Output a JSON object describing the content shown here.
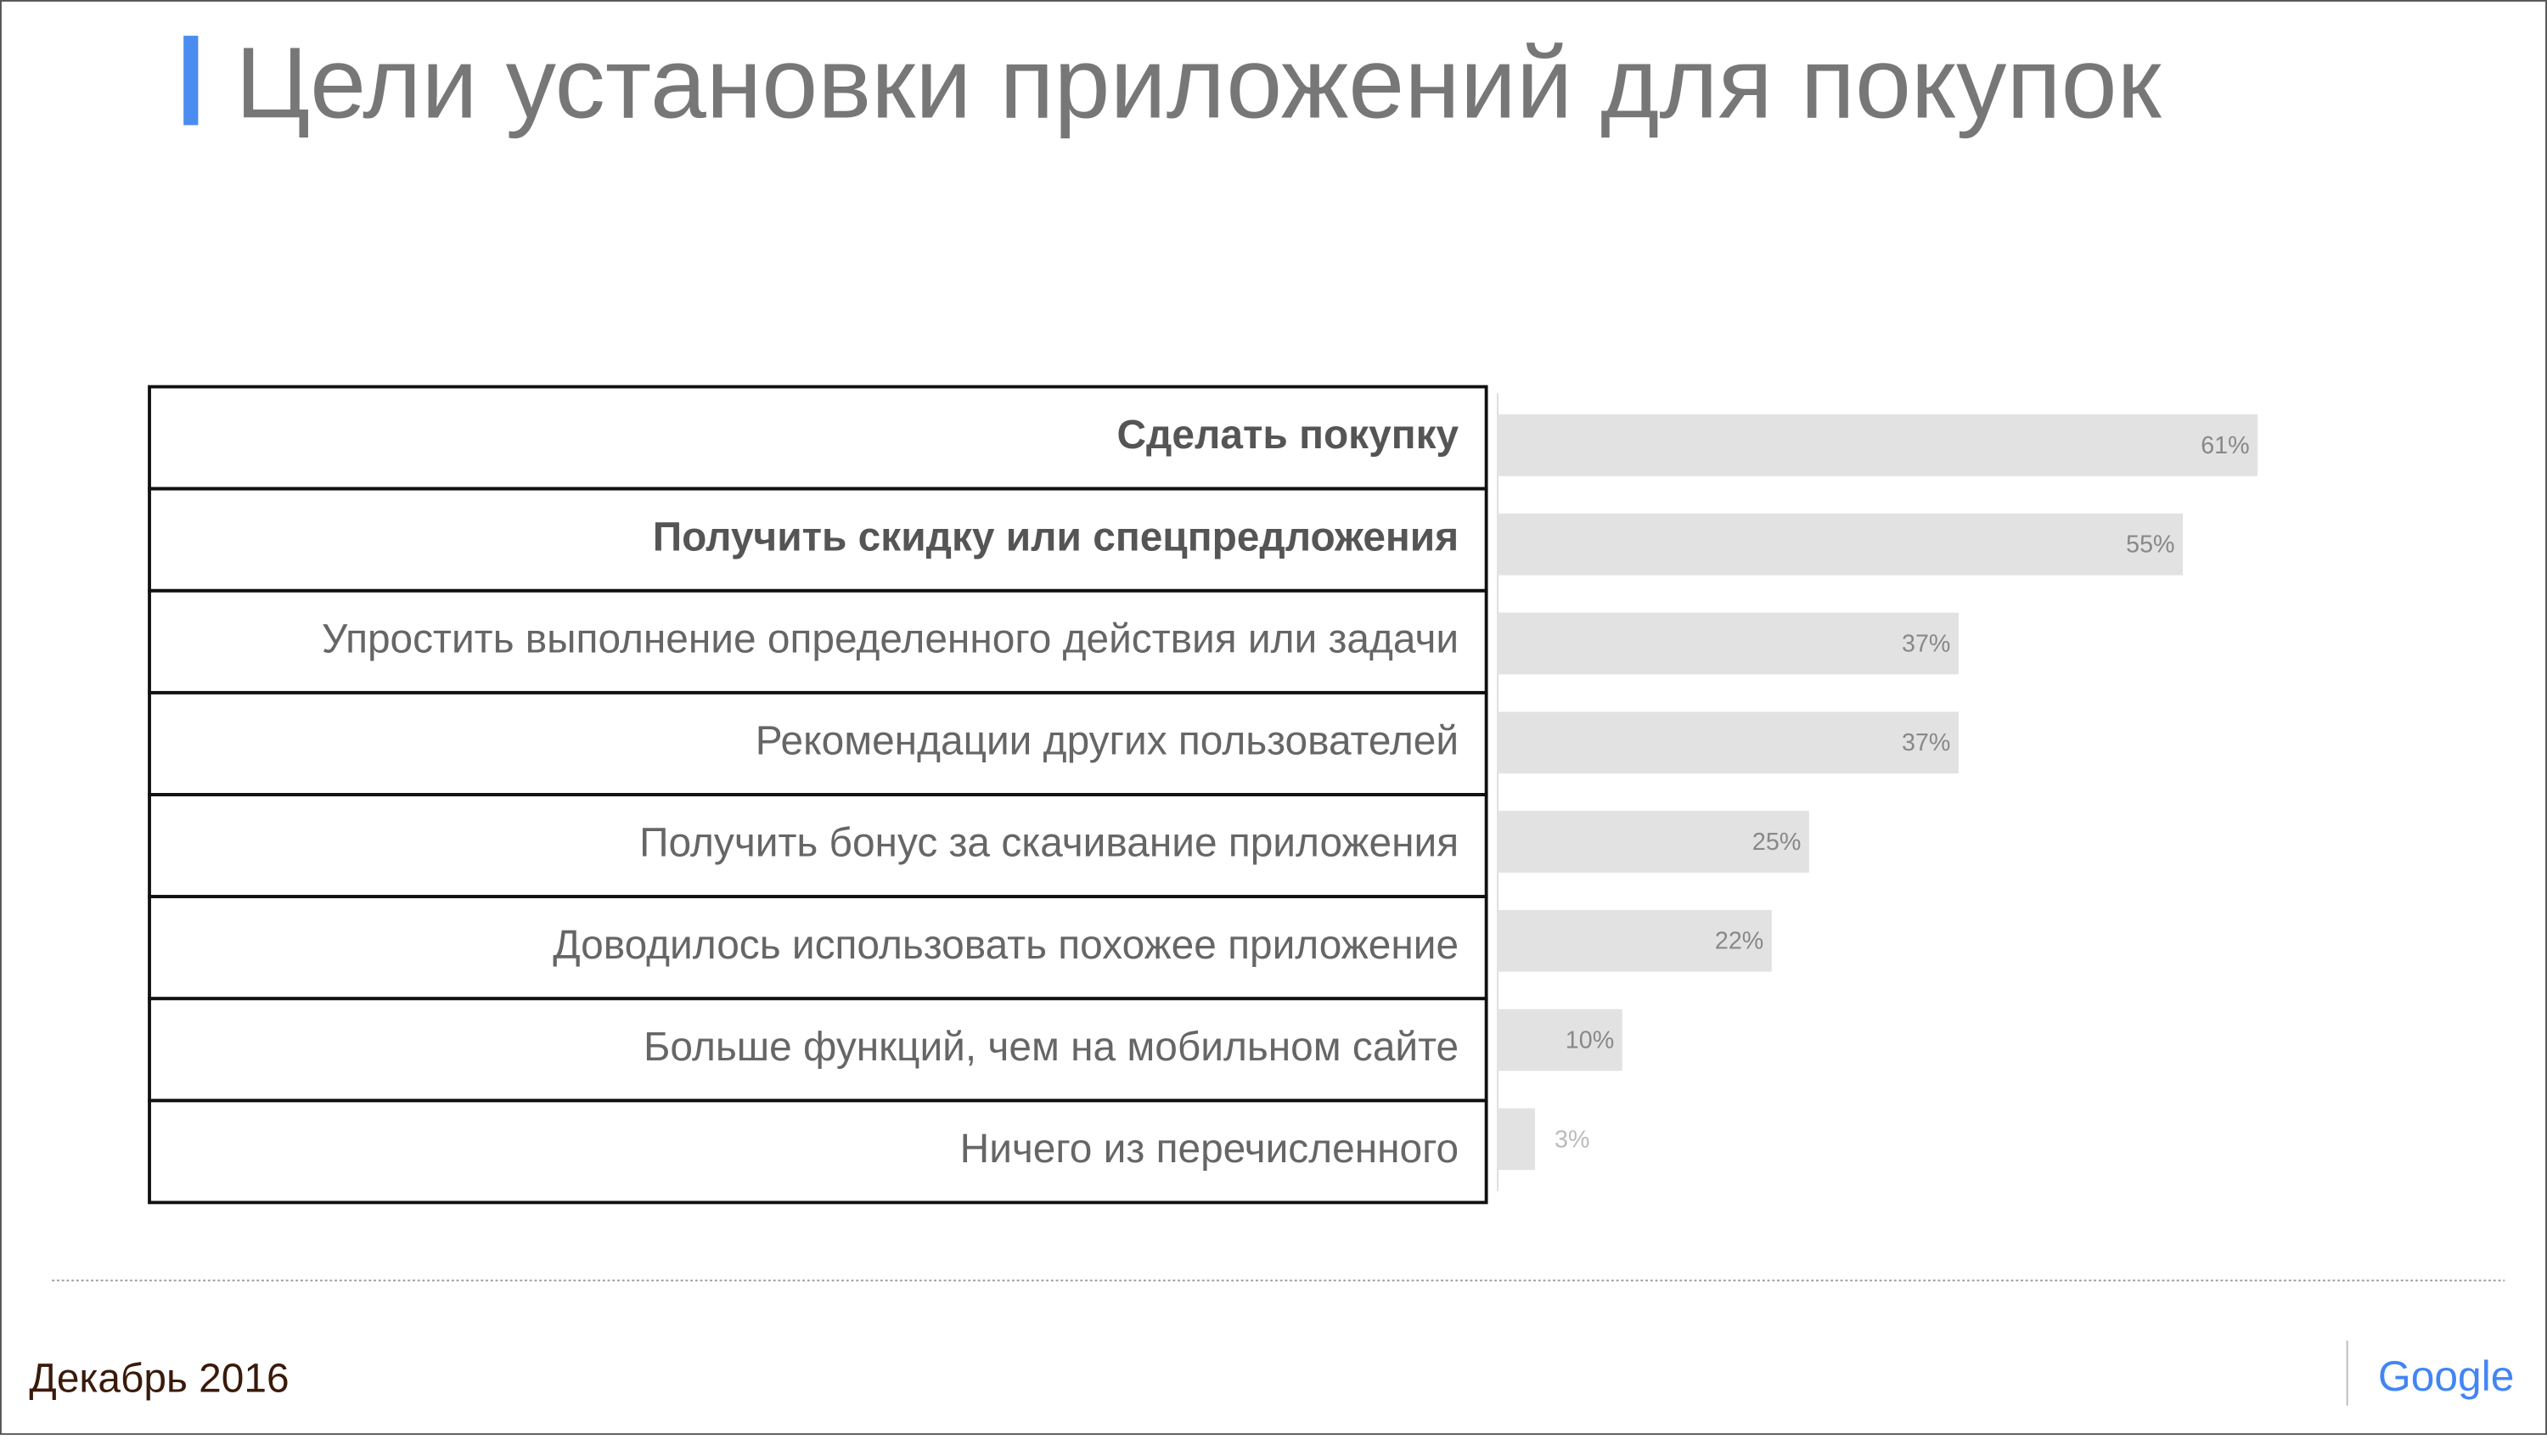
{
  "chart_data": {
    "type": "barh",
    "title": "Цели установки приложений для покупок",
    "categories": [
      "Сделать покупку",
      "Получить скидку или спецпредложения",
      "Упростить выполнение определенного действия или задачи",
      "Рекомендации других пользователей",
      "Получить бонус за скачивание приложения",
      "Доводилось использовать похожее приложение",
      "Больше функций, чем на мобильном сайте",
      "Ничего из перечисленного"
    ],
    "values": [
      61,
      55,
      37,
      37,
      25,
      22,
      10,
      3
    ],
    "value_labels": [
      "61%",
      "55%",
      "37%",
      "37%",
      "25%",
      "22%",
      "10%",
      "3%"
    ],
    "color": "#e2e2e2"
  },
  "footer": {
    "date": "Декабрь 2016",
    "logo": "Google"
  }
}
